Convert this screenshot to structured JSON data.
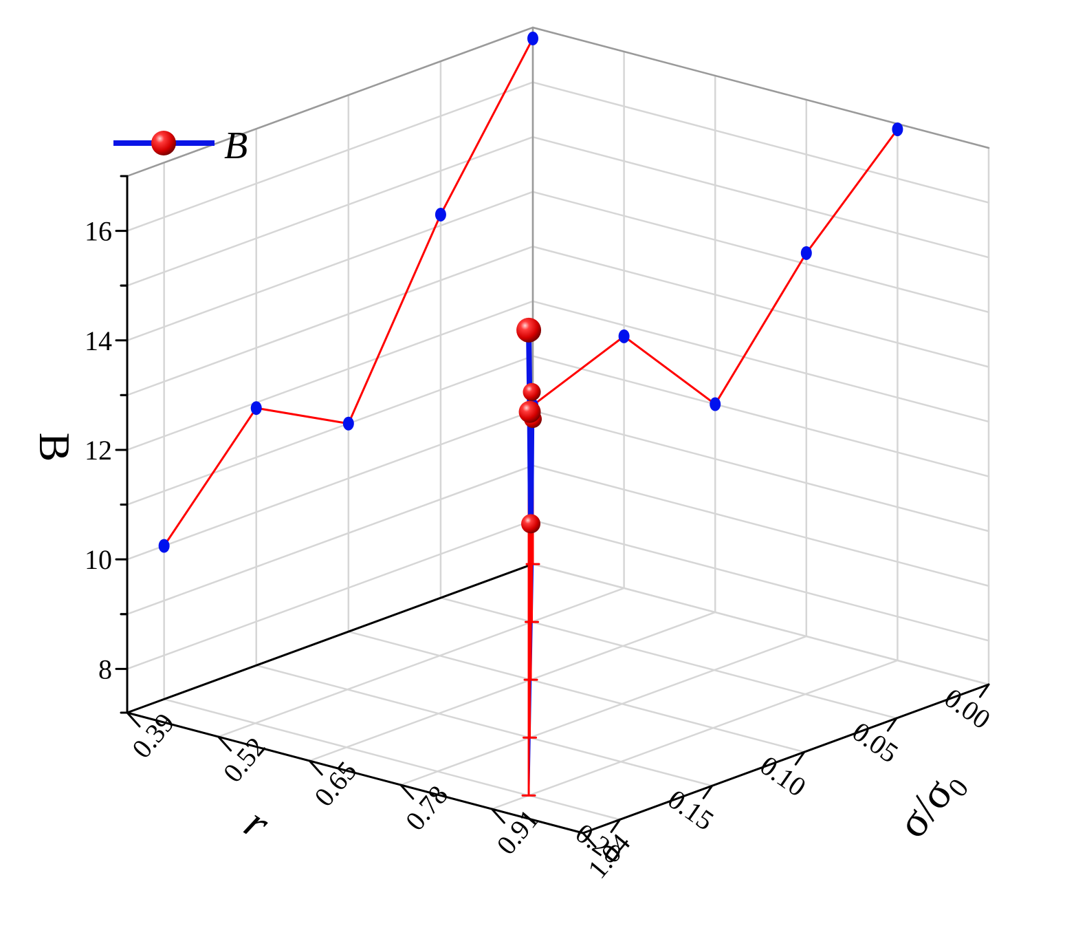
{
  "chart_data": {
    "type": "scatter3d",
    "legend": {
      "label": "B",
      "position": "top-left"
    },
    "axes": {
      "z": {
        "label": "B",
        "ticks": [
          "8",
          "10",
          "12",
          "14",
          "16"
        ],
        "range": [
          7.2,
          17
        ]
      },
      "x": {
        "label": "r",
        "ticks": [
          "0.00",
          "0.05",
          "0.10",
          "0.15",
          "0.20"
        ],
        "range": [
          0,
          0.22
        ]
      },
      "y": {
        "label": "σ/σ",
        "label_sub": "0",
        "ticks": [
          "0.39",
          "0.52",
          "0.65",
          "0.78",
          "0.91",
          "1.04"
        ],
        "range": [
          0.39,
          1.04
        ]
      }
    },
    "grid": true,
    "series": [
      {
        "name": "B",
        "points": [
          {
            "r": 0.0,
            "s": 0.39,
            "B": 9.85
          },
          {
            "r": 0.05,
            "s": 0.52,
            "B": 11.4
          },
          {
            "r": 0.1,
            "s": 0.65,
            "B": 10.05
          },
          {
            "r": 0.15,
            "s": 0.78,
            "B": 13.15
          },
          {
            "r": 0.2,
            "s": 0.91,
            "B": 15.7
          }
        ]
      }
    ],
    "projections": {
      "wall_r": [
        {
          "r": 0.0,
          "B": 16.8
        },
        {
          "r": 0.05,
          "B": 14.2
        },
        {
          "r": 0.1,
          "B": 11.0
        },
        {
          "r": 0.15,
          "B": 11.9
        },
        {
          "r": 0.2,
          "B": 10.0
        }
      ],
      "wall_s": [
        {
          "s": 0.39,
          "B": 10.1
        },
        {
          "s": 0.52,
          "B": 11.8
        },
        {
          "s": 0.65,
          "B": 11.0
        },
        {
          "s": 0.78,
          "B": 14.2
        },
        {
          "s": 0.91,
          "B": 16.9
        }
      ]
    },
    "colors": {
      "line": "#0a14e6",
      "marker": "#e8000b",
      "projection_line": "#ff0000",
      "projection_marker": "#0011ee",
      "grid": "#d6d6d6",
      "axis": "#000000"
    }
  }
}
